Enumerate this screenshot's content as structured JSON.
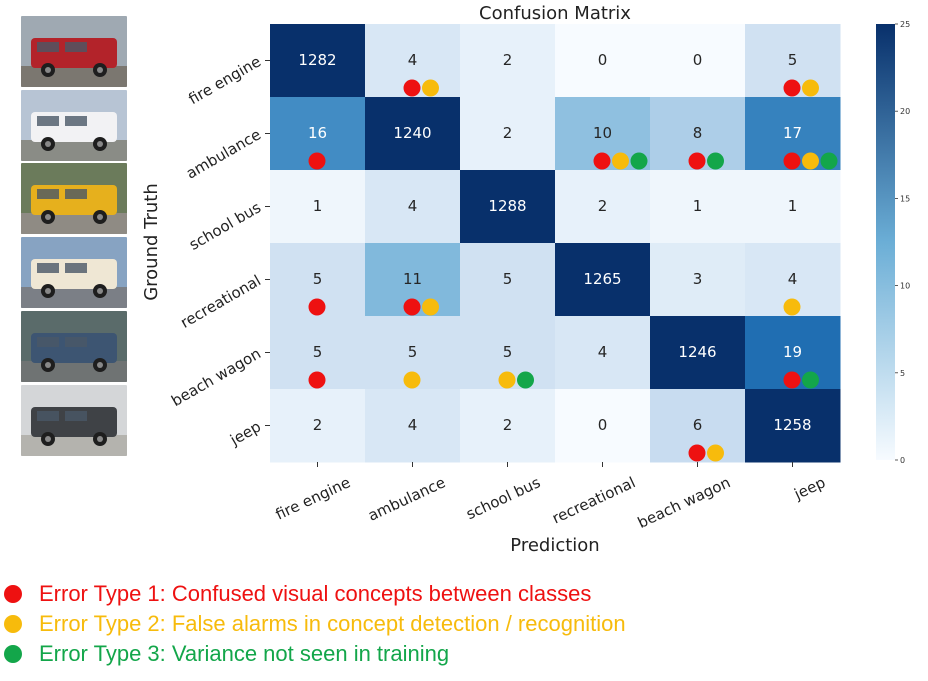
{
  "colors": {
    "red": "#ee1111",
    "yellow": "#f7bb0c",
    "green": "#13a64a",
    "cmap_low": "#f7fbff",
    "cmap_high": "#08306b"
  },
  "thumbnails": [
    {
      "name": "fire-engine-photo",
      "body": "#b3232a",
      "bg": "#9fa9b2",
      "ground": "#7b7770"
    },
    {
      "name": "ambulance-photo",
      "body": "#f2f2f4",
      "bg": "#b7c4d4",
      "ground": "#8a8c86"
    },
    {
      "name": "school-bus-photo",
      "body": "#e6b01d",
      "bg": "#6b7b5b",
      "ground": "#8f8b84"
    },
    {
      "name": "recreational-vehicle-photo",
      "body": "#efe7d4",
      "bg": "#87a3c2",
      "ground": "#7b7f86"
    },
    {
      "name": "beach-wagon-photo",
      "body": "#3d5572",
      "bg": "#5a6b6a",
      "ground": "#6f7373"
    },
    {
      "name": "jeep-photo",
      "body": "#3f4246",
      "bg": "#d4d6d8",
      "ground": "#b4b3ae"
    }
  ],
  "chart_data": {
    "type": "heatmap",
    "title": "Confusion Matrix",
    "xlabel": "Prediction",
    "ylabel": "Ground Truth",
    "x_categories": [
      "fire engine",
      "ambulance",
      "school bus",
      "recreational",
      "beach wagon",
      "jeep"
    ],
    "y_categories": [
      "fire engine",
      "ambulance",
      "school bus",
      "recreational",
      "beach wagon",
      "jeep"
    ],
    "values": [
      [
        1282,
        4,
        2,
        0,
        0,
        5
      ],
      [
        16,
        1240,
        2,
        10,
        8,
        17
      ],
      [
        1,
        4,
        1288,
        2,
        1,
        1
      ],
      [
        5,
        11,
        5,
        1265,
        3,
        4
      ],
      [
        5,
        5,
        5,
        4,
        1246,
        19
      ],
      [
        2,
        4,
        2,
        0,
        6,
        1258
      ]
    ],
    "color_scale": {
      "min": 0,
      "max": 25,
      "ticks": [
        0,
        5,
        10,
        15,
        20,
        25
      ]
    },
    "error_markers": [
      [
        [],
        [
          1,
          2
        ],
        [],
        [],
        [],
        [
          1,
          2
        ]
      ],
      [
        [
          1
        ],
        [],
        [],
        [
          1,
          2,
          3
        ],
        [
          1,
          3
        ],
        [
          1,
          2,
          3
        ]
      ],
      [
        [],
        [],
        [],
        [],
        [],
        []
      ],
      [
        [
          1
        ],
        [
          1,
          2
        ],
        [],
        [],
        [],
        [
          2
        ]
      ],
      [
        [
          1
        ],
        [
          2
        ],
        [
          2,
          3
        ],
        [],
        [],
        [
          1,
          3
        ]
      ],
      [
        [],
        [],
        [],
        [],
        [
          1,
          2
        ],
        []
      ]
    ]
  },
  "legend": [
    {
      "type": 1,
      "text": "Error Type 1: Confused visual concepts between classes",
      "color": "#ee1111"
    },
    {
      "type": 2,
      "text": "Error Type 2: False alarms in concept detection / recognition",
      "color": "#f7bb0c"
    },
    {
      "type": 3,
      "text": "Error Type 3: Variance not seen in training",
      "color": "#13a64a"
    }
  ]
}
